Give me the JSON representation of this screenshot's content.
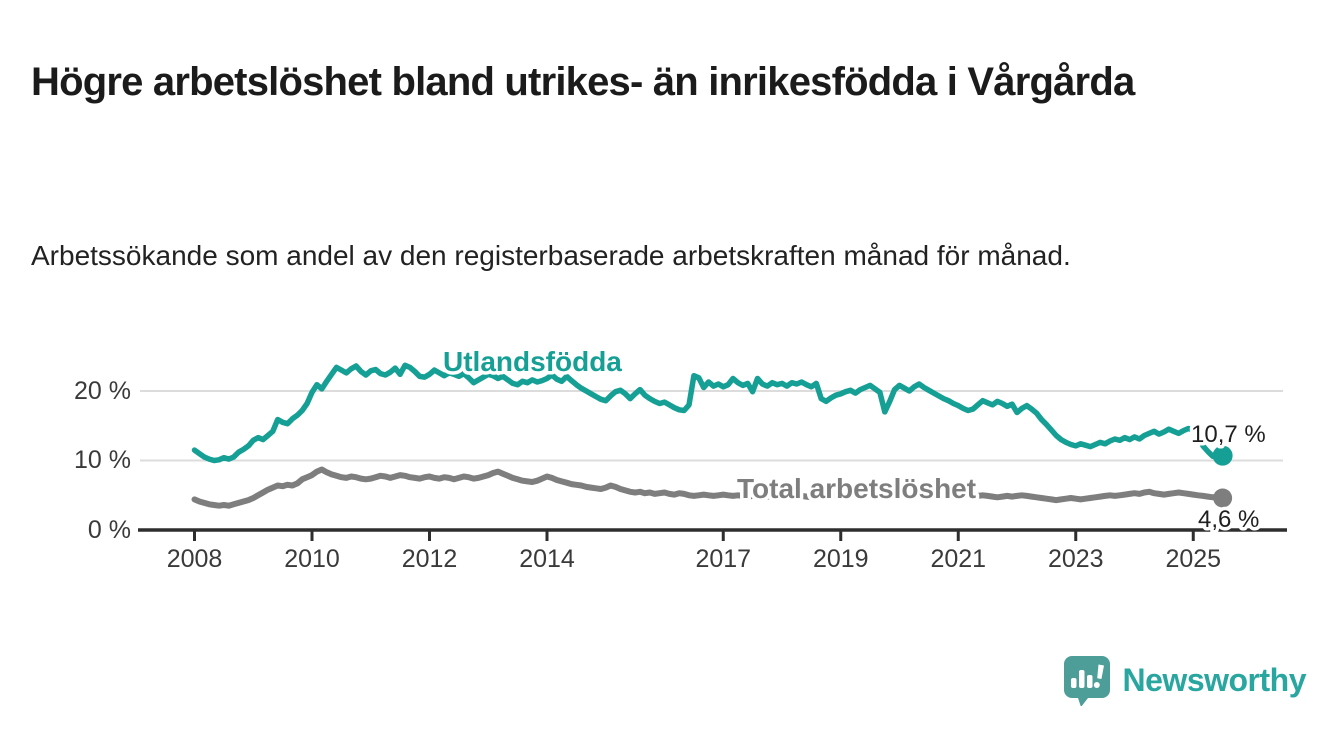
{
  "page": {
    "title": "Högre arbetslöshet bland utrikes- än inrikesfödda i Vårgårda",
    "subtitle": "Arbetssökande som andel av den registerbaserade arbetskraften månad för månad."
  },
  "branding": {
    "name": "Newsworthy"
  },
  "colors": {
    "foreign_born_line": "#16a095",
    "total_line": "#7e7e7e",
    "axis": "#2e2e2e",
    "grid": "#dcdcdc",
    "tick_text": "#3a3a3a",
    "brand_teal": "#2aa6a1",
    "brand_bubble": "#4d9d99"
  },
  "chart_data": {
    "type": "line",
    "x_unit": "month",
    "x_start": "2008-01",
    "x_end": "2025-07",
    "grid": "horizontal",
    "legend_position": "inline-labels",
    "ylim": [
      0,
      26
    ],
    "xticks": [
      2008,
      2010,
      2012,
      2014,
      2017,
      2019,
      2021,
      2023,
      2025
    ],
    "yticks": [
      {
        "value": 0,
        "label": "0 %"
      },
      {
        "value": 10,
        "label": "10 %"
      },
      {
        "value": 20,
        "label": "20 %"
      }
    ],
    "series": [
      {
        "name": "Utlandsfödda",
        "end_label": "10,7 %",
        "end_value": 10.7,
        "color": "#16a095",
        "values": [
          11.5,
          11.0,
          10.5,
          10.2,
          10.0,
          10.1,
          10.4,
          10.2,
          10.5,
          11.2,
          11.6,
          12.1,
          12.9,
          13.3,
          13.0,
          13.6,
          14.2,
          15.9,
          15.5,
          15.3,
          16.0,
          16.5,
          17.2,
          18.2,
          19.8,
          20.9,
          20.3,
          21.4,
          22.4,
          23.4,
          23.0,
          22.6,
          23.2,
          23.6,
          22.8,
          22.3,
          22.9,
          23.1,
          22.5,
          22.3,
          22.7,
          23.3,
          22.4,
          23.7,
          23.4,
          22.8,
          22.1,
          22.0,
          22.4,
          23.0,
          22.6,
          22.2,
          22.6,
          22.4,
          22.1,
          22.5,
          21.9,
          21.2,
          21.6,
          22.0,
          22.4,
          22.2,
          21.8,
          22.1,
          21.6,
          21.1,
          20.9,
          21.4,
          21.2,
          21.6,
          21.3,
          21.5,
          21.8,
          22.3,
          21.7,
          21.4,
          22.1,
          21.5,
          20.9,
          20.4,
          20.0,
          19.6,
          19.2,
          18.8,
          18.6,
          19.3,
          19.9,
          20.1,
          19.6,
          18.9,
          19.6,
          20.2,
          19.4,
          18.9,
          18.5,
          18.2,
          18.4,
          18.0,
          17.6,
          17.3,
          17.2,
          18.0,
          22.2,
          21.9,
          20.5,
          21.3,
          20.7,
          21.0,
          20.6,
          20.9,
          21.8,
          21.2,
          20.8,
          21.1,
          19.9,
          21.8,
          21.0,
          20.7,
          21.2,
          20.9,
          21.1,
          20.7,
          21.2,
          21.0,
          21.3,
          20.9,
          20.6,
          21.1,
          18.9,
          18.5,
          19.0,
          19.4,
          19.6,
          19.9,
          20.1,
          19.7,
          20.2,
          20.5,
          20.8,
          20.3,
          19.8,
          17.0,
          18.5,
          20.2,
          20.8,
          20.4,
          20.0,
          20.6,
          21.0,
          20.5,
          20.1,
          19.7,
          19.3,
          18.9,
          18.6,
          18.2,
          17.9,
          17.5,
          17.2,
          17.4,
          18.0,
          18.6,
          18.3,
          18.0,
          18.5,
          18.2,
          17.8,
          18.1,
          16.9,
          17.5,
          17.9,
          17.4,
          16.8,
          15.9,
          15.2,
          14.4,
          13.6,
          13.0,
          12.6,
          12.3,
          12.1,
          12.4,
          12.2,
          12.0,
          12.3,
          12.6,
          12.4,
          12.8,
          13.1,
          12.9,
          13.3,
          13.0,
          13.4,
          13.1,
          13.6,
          13.9,
          14.2,
          13.8,
          14.1,
          14.5,
          14.2,
          13.9,
          14.3,
          14.6,
          14.4,
          14.0,
          12.1,
          11.3,
          10.6,
          11.2,
          10.7
        ]
      },
      {
        "name": "Total arbetslöshet",
        "end_label": "4,6 %",
        "end_value": 4.6,
        "color": "#7e7e7e",
        "values": [
          4.4,
          4.1,
          3.9,
          3.7,
          3.6,
          3.5,
          3.6,
          3.5,
          3.7,
          3.9,
          4.1,
          4.3,
          4.6,
          5.0,
          5.4,
          5.8,
          6.1,
          6.4,
          6.3,
          6.5,
          6.4,
          6.7,
          7.3,
          7.6,
          7.9,
          8.4,
          8.7,
          8.3,
          8.0,
          7.8,
          7.6,
          7.5,
          7.7,
          7.6,
          7.4,
          7.3,
          7.4,
          7.6,
          7.8,
          7.7,
          7.5,
          7.7,
          7.9,
          7.8,
          7.6,
          7.5,
          7.4,
          7.6,
          7.7,
          7.5,
          7.4,
          7.6,
          7.5,
          7.3,
          7.5,
          7.7,
          7.6,
          7.4,
          7.5,
          7.7,
          7.9,
          8.2,
          8.4,
          8.1,
          7.8,
          7.5,
          7.3,
          7.1,
          7.0,
          6.9,
          7.1,
          7.4,
          7.7,
          7.5,
          7.2,
          7.0,
          6.8,
          6.6,
          6.5,
          6.4,
          6.2,
          6.1,
          6.0,
          5.9,
          6.1,
          6.4,
          6.2,
          5.9,
          5.7,
          5.5,
          5.4,
          5.5,
          5.3,
          5.4,
          5.2,
          5.3,
          5.4,
          5.2,
          5.1,
          5.3,
          5.2,
          5.0,
          4.9,
          5.0,
          5.1,
          5.0,
          4.9,
          5.0,
          5.1,
          5.0,
          4.9,
          5.0,
          4.9,
          4.8,
          4.9,
          5.0,
          4.9,
          4.8,
          4.9,
          5.0,
          4.9,
          4.8,
          4.9,
          5.0,
          4.9,
          4.8,
          4.7,
          4.8,
          4.9,
          4.8,
          4.9,
          5.0,
          4.9,
          5.0,
          5.1,
          5.0,
          4.9,
          5.0,
          5.1,
          5.2,
          5.1,
          5.0,
          5.1,
          5.2,
          5.3,
          5.4,
          5.6,
          5.8,
          5.7,
          5.6,
          5.5,
          5.4,
          5.3,
          5.2,
          5.1,
          5.0,
          5.1,
          5.0,
          4.9,
          4.8,
          4.9,
          5.0,
          4.9,
          4.8,
          4.7,
          4.8,
          4.9,
          4.8,
          4.9,
          5.0,
          4.9,
          4.8,
          4.7,
          4.6,
          4.5,
          4.4,
          4.3,
          4.4,
          4.5,
          4.6,
          4.5,
          4.4,
          4.5,
          4.6,
          4.7,
          4.8,
          4.9,
          5.0,
          4.9,
          5.0,
          5.1,
          5.2,
          5.3,
          5.2,
          5.4,
          5.5,
          5.3,
          5.2,
          5.1,
          5.2,
          5.3,
          5.4,
          5.3,
          5.2,
          5.1,
          5.0,
          4.9,
          4.8,
          4.7,
          4.8,
          4.6
        ]
      }
    ]
  }
}
